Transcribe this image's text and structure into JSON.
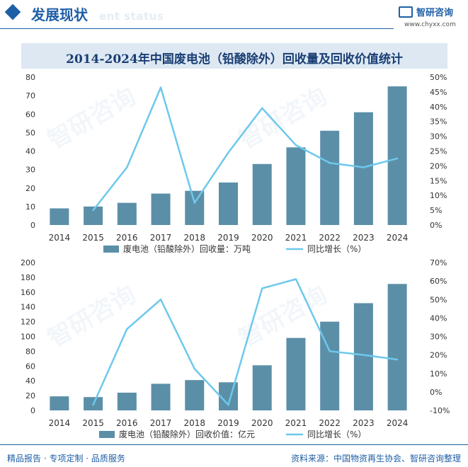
{
  "header": {
    "section_title": "发展现状",
    "ghost_text": "ent status",
    "logo_name": "智研咨询",
    "logo_url": "www.chyxx.com"
  },
  "banner_title": "2014-2024年中国废电池（铅酸除外）回收量及回收价值统计",
  "watermark": "智研咨询",
  "footer": {
    "left": "精品报告 · 专项定制 · 品质服务",
    "right": "资料来源：中国物资再生协会、智研咨询整理"
  },
  "colors": {
    "bar": "#5b8fa8",
    "line": "#6ec8ec",
    "brand": "#1f5fa6"
  },
  "chart_data": [
    {
      "type": "bar",
      "categories": [
        "2014",
        "2015",
        "2016",
        "2017",
        "2018",
        "2019",
        "2020",
        "2021",
        "2022",
        "2023",
        "2024"
      ],
      "series": [
        {
          "name": "废电池（铅酸除外）回收量：万吨",
          "type": "bar",
          "axis": "left",
          "values": [
            9,
            10,
            12,
            17,
            18.5,
            23,
            33,
            42,
            51,
            61,
            75
          ]
        },
        {
          "name": "同比增长（%）",
          "type": "line",
          "axis": "right",
          "values": [
            null,
            5.0,
            19.5,
            46.5,
            7.5,
            24.5,
            39.5,
            27.0,
            21.0,
            19.5,
            22.5
          ]
        }
      ],
      "ylim": [
        0,
        80
      ],
      "yticks": [
        "0",
        "10",
        "20",
        "30",
        "40",
        "50",
        "60",
        "70",
        "80"
      ],
      "y2lim": [
        0,
        50
      ],
      "y2ticks": [
        "0%",
        "5%",
        "10%",
        "15%",
        "20%",
        "25%",
        "30%",
        "35%",
        "40%",
        "45%",
        "50%"
      ],
      "legend": "bottom"
    },
    {
      "type": "bar",
      "categories": [
        "2014",
        "2015",
        "2016",
        "2017",
        "2018",
        "2019",
        "2020",
        "2021",
        "2022",
        "2023",
        "2024"
      ],
      "series": [
        {
          "name": "废电池（铅酸除外）回收价值：亿元",
          "type": "bar",
          "axis": "left",
          "values": [
            19,
            18,
            24,
            36,
            41,
            38,
            61,
            98,
            120,
            145,
            171
          ]
        },
        {
          "name": "同比增长（%）",
          "type": "line",
          "axis": "right",
          "values": [
            null,
            -7,
            34,
            50,
            12.5,
            -7,
            56,
            61,
            22,
            20,
            17.5
          ]
        }
      ],
      "ylim": [
        0,
        200
      ],
      "yticks": [
        "0",
        "20",
        "40",
        "60",
        "80",
        "100",
        "120",
        "140",
        "160",
        "180",
        "200"
      ],
      "y2lim": [
        -10,
        70
      ],
      "y2ticks": [
        "-10%",
        "0%",
        "10%",
        "20%",
        "30%",
        "40%",
        "50%",
        "60%",
        "70%"
      ],
      "legend": "bottom"
    }
  ]
}
